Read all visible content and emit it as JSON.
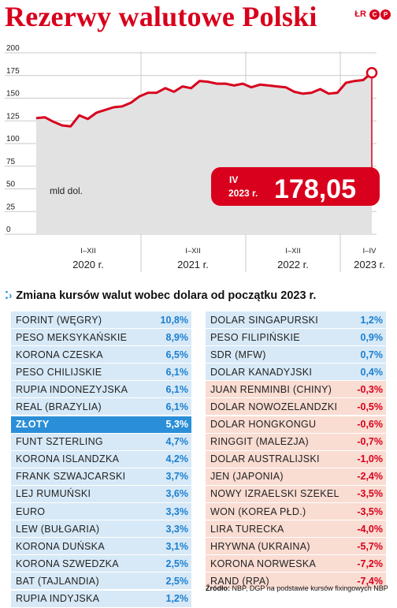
{
  "title": "Rezerwy walutowe Polski",
  "logo": {
    "text": "ŁR",
    "badges": [
      "C",
      "P"
    ]
  },
  "chart_data": {
    "type": "area",
    "unit_label": "mld dol.",
    "ylim": [
      0,
      200
    ],
    "yticks": [
      0,
      25,
      50,
      75,
      100,
      125,
      150,
      175,
      200
    ],
    "x_ticks": [
      {
        "label": "I–XII",
        "year": "2020 r."
      },
      {
        "label": "I–XII",
        "year": "2021 r."
      },
      {
        "label": "I–XII",
        "year": "2022 r."
      },
      {
        "label": "I–IV",
        "year": "2023 r."
      }
    ],
    "values": [
      128,
      129,
      124,
      120,
      119,
      131,
      127,
      134,
      137,
      140,
      141,
      145,
      152,
      156,
      156,
      161,
      157,
      163,
      161,
      169,
      168,
      166,
      166,
      164,
      166,
      162,
      165,
      164,
      163,
      162,
      157,
      155,
      156,
      160,
      155,
      156,
      167,
      169,
      170,
      178.05
    ],
    "callout": {
      "period": "IV",
      "year": "2023 r.",
      "value": "178,05"
    },
    "colors": {
      "line": "#d8001c",
      "area": "#e2e2e2",
      "callout": "#d8001c"
    }
  },
  "table": {
    "heading": "Zmiana kursów walut wobec dolara od początku 2023 r.",
    "left": [
      {
        "name": "Forint (Węgry)",
        "value": "10,8%"
      },
      {
        "name": "Peso meksykańskie",
        "value": "8,9%"
      },
      {
        "name": "Korona czeska",
        "value": "6,5%"
      },
      {
        "name": "Peso chilijskie",
        "value": "6,1%"
      },
      {
        "name": "Rupia indonezyjska",
        "value": "6,1%"
      },
      {
        "name": "Real (Brazylia)",
        "value": "6,1%"
      },
      {
        "name": "Złoty",
        "value": "5,3%",
        "highlight": true
      },
      {
        "name": "Funt szterling",
        "value": "4,7%"
      },
      {
        "name": "Korona islandzka",
        "value": "4,2%"
      },
      {
        "name": "Frank szwajcarski",
        "value": "3,7%"
      },
      {
        "name": "Lej rumuński",
        "value": "3,6%"
      },
      {
        "name": "Euro",
        "value": "3,3%"
      },
      {
        "name": "Lew (Bułgaria)",
        "value": "3,3%"
      },
      {
        "name": "Korona duńska",
        "value": "3,1%"
      },
      {
        "name": "Korona szwedzka",
        "value": "2,5%"
      },
      {
        "name": "Bat (Tajlandia)",
        "value": "2,5%"
      },
      {
        "name": "Rupia indyjska",
        "value": "1,2%"
      }
    ],
    "right": [
      {
        "name": "Dolar singapurski",
        "value": "1,2%"
      },
      {
        "name": "Peso filipińskie",
        "value": "0,9%"
      },
      {
        "name": "SDR (MFW)",
        "value": "0,7%"
      },
      {
        "name": "Dolar kanadyjski",
        "value": "0,4%"
      },
      {
        "name": "Juan renminbi (Chiny)",
        "value": "-0,3%"
      },
      {
        "name": "Dolar nowozelandzki",
        "value": "-0,5%"
      },
      {
        "name": "Dolar hongkongu",
        "value": "-0,6%"
      },
      {
        "name": "Ringgit (Malezja)",
        "value": "-0,7%"
      },
      {
        "name": "Dolar australijski",
        "value": "-1,0%"
      },
      {
        "name": "Jen (Japonia)",
        "value": "-2,4%"
      },
      {
        "name": "Nowy izraelski szekel",
        "value": "-3,5%"
      },
      {
        "name": "Won (Korea Płd.)",
        "value": "-3,5%"
      },
      {
        "name": "Lira turecka",
        "value": "-4,0%"
      },
      {
        "name": "Hrywna (Ukraina)",
        "value": "-5,7%"
      },
      {
        "name": "Korona norweska",
        "value": "-7,2%"
      },
      {
        "name": "Rand (RPA)",
        "value": "-7,4%"
      }
    ]
  },
  "source": {
    "label": "Źródło:",
    "text": "NBP, DGP na podstawie kursów fixingowych NBP"
  }
}
